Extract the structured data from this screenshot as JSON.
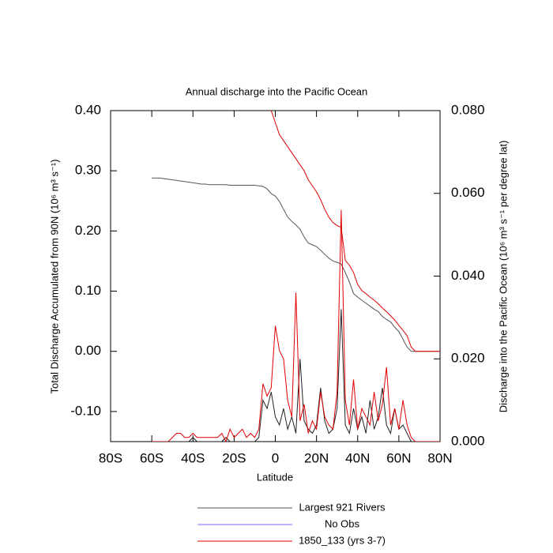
{
  "chart_data": {
    "type": "line",
    "title": "Annual discharge into the Pacific Ocean",
    "x_label": "Latitude",
    "y_label": "Total Discharge Accumulated from 90N (10⁶ m³ s⁻¹)",
    "y2_label": "Discharge into the Pacific Ocean (10⁶ m³ s⁻¹ per degree lat)",
    "xlim": [
      -80,
      80
    ],
    "xticks": [
      {
        "value": -80,
        "label": "80S"
      },
      {
        "value": -60,
        "label": "60S"
      },
      {
        "value": -40,
        "label": "40S"
      },
      {
        "value": -20,
        "label": "20S"
      },
      0,
      {
        "value": 20,
        "label": "20N"
      },
      {
        "value": 40,
        "label": "40N"
      },
      {
        "value": 60,
        "label": "60N"
      },
      {
        "value": 80,
        "label": "80N"
      }
    ],
    "ylim": [
      -0.15,
      0.4
    ],
    "yticks": [
      {
        "value": -0.1,
        "label": "-0.10"
      },
      {
        "value": 0,
        "label": "0.00"
      },
      {
        "value": 0.1,
        "label": "0.10"
      },
      {
        "value": 0.2,
        "label": "0.20"
      },
      {
        "value": 0.3,
        "label": "0.30"
      },
      {
        "value": 0.4,
        "label": "0.40"
      }
    ],
    "y2lim": [
      0,
      0.08
    ],
    "y2ticks": [
      {
        "value": 0,
        "label": "0.000"
      },
      {
        "value": 0.02,
        "label": "0.020"
      },
      {
        "value": 0.04,
        "label": "0.040"
      },
      {
        "value": 0.06,
        "label": "0.060"
      },
      {
        "value": 0.08,
        "label": "0.080"
      }
    ],
    "legend": "bottom",
    "x": [
      -60,
      -58,
      -56,
      -54,
      -52,
      -50,
      -48,
      -46,
      -44,
      -42,
      -40,
      -38,
      -36,
      -34,
      -32,
      -30,
      -28,
      -26,
      -24,
      -22,
      -20,
      -18,
      -16,
      -14,
      -12,
      -10,
      -8,
      -6,
      -4,
      -2,
      0,
      2,
      4,
      6,
      8,
      10,
      12,
      14,
      16,
      18,
      20,
      22,
      24,
      26,
      28,
      30,
      32,
      34,
      36,
      38,
      40,
      42,
      44,
      46,
      48,
      50,
      52,
      54,
      56,
      58,
      60,
      62,
      64,
      66,
      68,
      70,
      72,
      74,
      76,
      78,
      80
    ],
    "series": [
      {
        "name": "Largest 921 Rivers",
        "color": "#555555",
        "values": [
          0.288,
          0.288,
          0.288,
          0.287,
          0.286,
          0.285,
          0.284,
          0.283,
          0.282,
          0.281,
          0.28,
          0.279,
          0.278,
          0.278,
          0.277,
          0.277,
          0.277,
          0.277,
          0.277,
          0.276,
          0.276,
          0.276,
          0.276,
          0.276,
          0.276,
          0.276,
          0.275,
          0.274,
          0.27,
          0.262,
          0.258,
          0.249,
          0.236,
          0.223,
          0.216,
          0.21,
          0.203,
          0.19,
          0.18,
          0.177,
          0.174,
          0.168,
          0.161,
          0.155,
          0.15,
          0.148,
          0.145,
          0.131,
          0.115,
          0.096,
          0.09,
          0.085,
          0.08,
          0.075,
          0.07,
          0.066,
          0.058,
          0.053,
          0.049,
          0.04,
          0.033,
          0.02,
          0.007,
          0.0,
          0.0,
          0.0,
          0.0,
          0.0,
          0.0,
          0.0,
          0.0
        ]
      },
      {
        "name": "No Obs",
        "color": "#6b6bff",
        "values": [
          null,
          null,
          null,
          null,
          null,
          null,
          null,
          null,
          null,
          null,
          null,
          null,
          null,
          null,
          null,
          null,
          null,
          null,
          null,
          null,
          null,
          null,
          null,
          null,
          null,
          null,
          null,
          null,
          null,
          null,
          null,
          null,
          null,
          null,
          null,
          null,
          null,
          null,
          null,
          null,
          null,
          null,
          null,
          null,
          null,
          null,
          null,
          null,
          null,
          null,
          null,
          null,
          null,
          null,
          null,
          null,
          null,
          null,
          null,
          null,
          null,
          null,
          null,
          null,
          null,
          null,
          null,
          null,
          null,
          null,
          null
        ]
      },
      {
        "name": "1850_133 (yrs 3-7)",
        "color": "#e00000",
        "values": [
          null,
          null,
          null,
          null,
          null,
          null,
          null,
          null,
          null,
          null,
          null,
          null,
          null,
          null,
          null,
          null,
          null,
          null,
          null,
          null,
          null,
          null,
          null,
          null,
          null,
          null,
          null,
          null,
          null,
          0.4,
          0.38,
          0.36,
          0.35,
          0.34,
          0.33,
          0.32,
          0.31,
          0.3,
          0.285,
          0.275,
          0.265,
          0.252,
          0.236,
          0.223,
          0.214,
          0.209,
          0.206,
          0.151,
          0.143,
          0.131,
          0.111,
          0.101,
          0.096,
          0.09,
          0.085,
          0.079,
          0.072,
          0.066,
          0.059,
          0.052,
          0.043,
          0.035,
          0.026,
          0.007,
          0.0,
          0.0,
          0.0,
          0.0,
          0.0,
          0.0,
          0.0
        ]
      },
      {
        "axis": "y2",
        "color": "#222222",
        "values": [
          0,
          0,
          0,
          0,
          0,
          0,
          0,
          0,
          0,
          0,
          0.001,
          0,
          0,
          0,
          0,
          0,
          0,
          0,
          0.001,
          0,
          0,
          0,
          0,
          0,
          0,
          0,
          0.001,
          0.01,
          0.008,
          0.012,
          0.006,
          0.004,
          0.008,
          0.003,
          0.006,
          0.002,
          0.02,
          0.005,
          0.003,
          0.002,
          0.004,
          0.013,
          0.005,
          0.002,
          0.003,
          0.008,
          0.032,
          0.004,
          0.002,
          0.008,
          0.003,
          0.006,
          0.002,
          0.01,
          0.003,
          0.006,
          0.013,
          0.004,
          0.002,
          0.008,
          0.003,
          0.004,
          0.002,
          0,
          0,
          0,
          0,
          0,
          0,
          0,
          0
        ]
      },
      {
        "axis": "y2",
        "color": "#e00000",
        "values": [
          0,
          0,
          0,
          0,
          0,
          0.001,
          0.002,
          0.002,
          0.001,
          0.001,
          0.002,
          0.001,
          0.001,
          0.001,
          0.001,
          0.001,
          0.001,
          0.002,
          0,
          0.003,
          0.001,
          0.002,
          0.003,
          0.001,
          0.002,
          0.001,
          0.003,
          0.014,
          0.011,
          0.013,
          0.028,
          0.022,
          0.02,
          0.01,
          0.006,
          0.036,
          0.005,
          0.009,
          0.002,
          0.005,
          0.003,
          0.012,
          0.006,
          0.004,
          0.003,
          0.012,
          0.056,
          0.01,
          0.004,
          0.015,
          0.003,
          0.008,
          0.006,
          0.004,
          0.012,
          0.005,
          0.009,
          0.018,
          0.004,
          0.008,
          0.003,
          0.01,
          0.004,
          0.001,
          0,
          0,
          0,
          0,
          0,
          0,
          0
        ]
      }
    ]
  }
}
